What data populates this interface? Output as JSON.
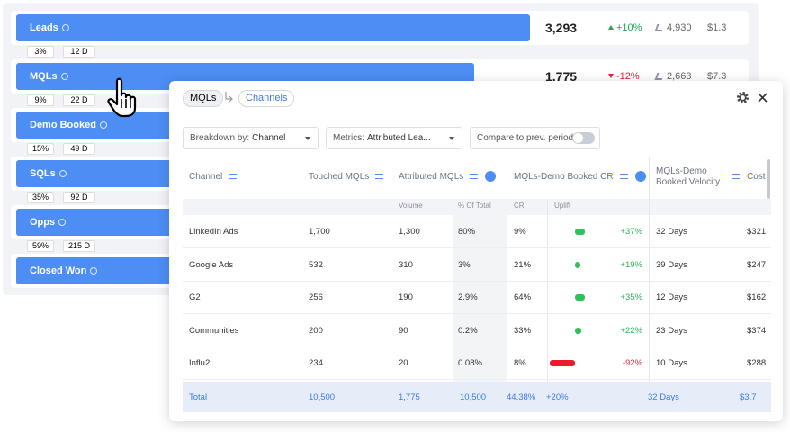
{
  "funnel": [
    {
      "label": "Leads",
      "count": "3,293",
      "change": "+10%",
      "secondary": "4,930",
      "cost": "$1.3",
      "conversion": "3%",
      "days": "12 D"
    },
    {
      "label": "MQLs",
      "count": "1,775",
      "change": "-12%",
      "secondary": "2,663",
      "cost": "$7.3",
      "conversion": "9%",
      "days": "22 D"
    },
    {
      "label": "Demo Booked",
      "conversion": "15%",
      "days": "49 D"
    },
    {
      "label": "SQLs",
      "conversion": "35%",
      "days": "92 D"
    },
    {
      "label": "Opps",
      "conversion": "59%",
      "days": "215 D"
    },
    {
      "label": "Closed Won"
    }
  ],
  "modal": {
    "breadcrumb": [
      "MQLs",
      "Channels"
    ],
    "filters": {
      "breakdown_label": "Breakdown by:",
      "breakdown_value": "Channel",
      "metrics_label": "Metrics:",
      "metrics_value": "Attributed Lea...",
      "compare": "Compare to prev. period"
    },
    "table": {
      "headers": [
        "Channel",
        "Touched MQLs",
        "Attributed MQLs",
        "MQLs-Demo Booked CR",
        "MQLs-Demo Booked Velocity",
        "Cost"
      ],
      "subheaders": [
        "Volume",
        "% Of Total",
        "CR",
        "Uplift"
      ],
      "rows": [
        [
          "LinkedIn Ads",
          "1,700",
          "1,300",
          "80%",
          "9%",
          "32 Days",
          "$321"
        ],
        [
          "Google Ads",
          "532",
          "310",
          "3%",
          "21%",
          "39 Days",
          "$247"
        ],
        [
          "G2",
          "256",
          "190",
          "2.9%",
          "64%",
          "12 Days",
          "$162"
        ],
        [
          "Communities",
          "200",
          "90",
          "0.2%",
          "33%",
          "23 Days",
          "$374"
        ],
        [
          "Influ2",
          "234",
          "20",
          "0.08%",
          "8%",
          "10 Days",
          "$288"
        ]
      ],
      "uplift": [
        {
          "value": 37,
          "label": "+37%"
        },
        {
          "value": 19,
          "label": "+19%"
        },
        {
          "value": 35,
          "label": "+35%"
        },
        {
          "value": 22,
          "label": "+22%"
        },
        {
          "value": -92,
          "label": "-92%"
        }
      ],
      "total": [
        "Total",
        "10,500",
        "1,775",
        "10,500",
        "44.38%",
        "+20%",
        "32 Days",
        "$3.7"
      ]
    }
  }
}
